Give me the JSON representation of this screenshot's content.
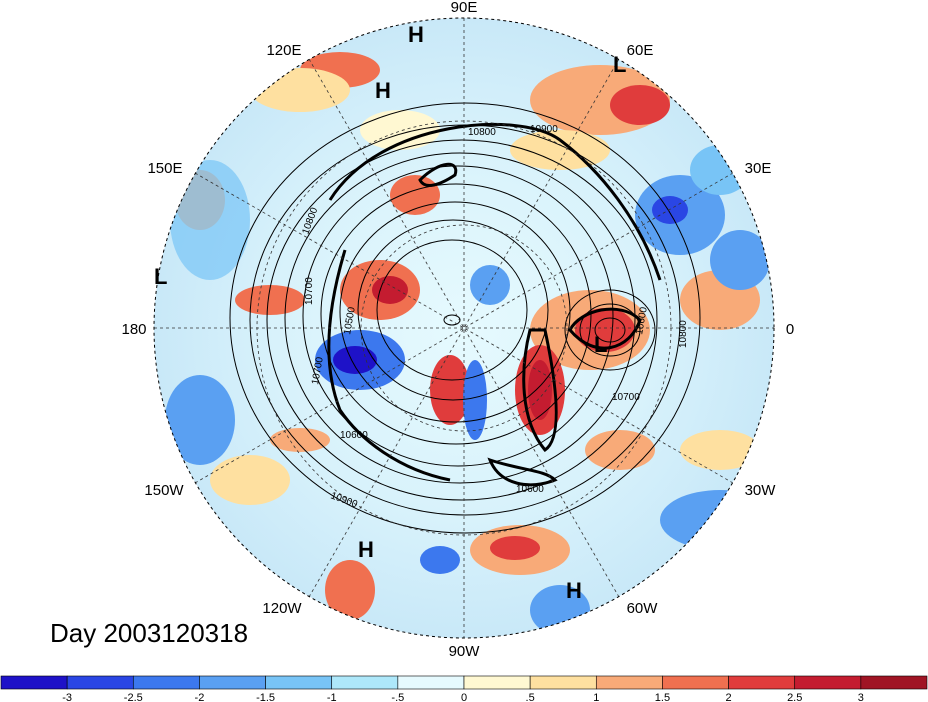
{
  "title": "Day 2003120318",
  "longitude_labels": [
    "90E",
    "60E",
    "30E",
    "0",
    "30W",
    "60W",
    "90W",
    "120W",
    "150W",
    "180",
    "150E",
    "120E"
  ],
  "pressure_systems": [
    {
      "label": "H",
      "id": "h-top"
    },
    {
      "label": "H",
      "id": "h-top2"
    },
    {
      "label": "L",
      "id": "l-top-right"
    },
    {
      "label": "L",
      "id": "l-left"
    },
    {
      "label": "L",
      "id": "l-right"
    },
    {
      "label": "H",
      "id": "h-bottom-left"
    },
    {
      "label": "H",
      "id": "h-bottom-right"
    }
  ],
  "contour_labels": [
    "10900",
    "10800",
    "10600",
    "10700",
    "10800",
    "10500",
    "10700",
    "10600",
    "10900",
    "10800",
    "10600",
    "10700",
    "10800",
    "10900"
  ],
  "colorbar": {
    "ticks": [
      "-3",
      "-2.5",
      "-2",
      "-1.5",
      "-1",
      "-.5",
      "0",
      ".5",
      "1",
      "1.5",
      "2",
      "2.5",
      "3"
    ],
    "colors": [
      "#1e12c8",
      "#2a46e4",
      "#3c78ee",
      "#5aa0f2",
      "#78c4f6",
      "#aee8fa",
      "#e6fafe",
      "#fff8d2",
      "#fee0a0",
      "#f8aa78",
      "#f07050",
      "#e03c3c",
      "#c41c30",
      "#a01424"
    ]
  }
}
